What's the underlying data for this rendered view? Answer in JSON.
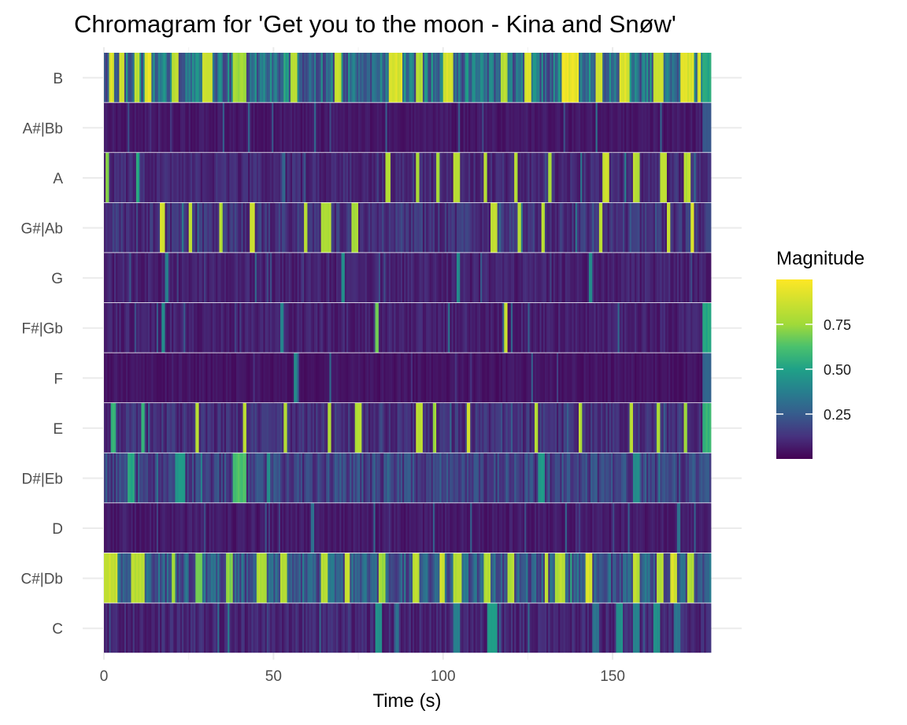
{
  "chart_data": {
    "type": "heatmap",
    "title": "Chromagram for 'Get you to the moon -  Kina and Snøw'",
    "xlabel": "Time (s)",
    "ylabel": "",
    "xlim": [
      0,
      179
    ],
    "x_ticks": [
      0,
      50,
      100,
      150
    ],
    "pitch_classes": [
      "C",
      "C#|Db",
      "D",
      "D#|Eb",
      "E",
      "F",
      "F#|Gb",
      "G",
      "G#|Ab",
      "A",
      "A#|Bb",
      "B"
    ],
    "frame_seconds": 0.5,
    "colorscale": "viridis",
    "color_range": [
      0,
      1
    ],
    "legend": {
      "title": "Magnitude",
      "ticks": [
        0.25,
        0.5,
        0.75
      ],
      "tick_labels": [
        "0.25",
        "0.50",
        "0.75"
      ],
      "position": "right"
    },
    "base_levels": {
      "C": 0.12,
      "C#|Db": 0.3,
      "D": 0.08,
      "D#|Eb": 0.22,
      "E": 0.15,
      "F": 0.06,
      "F#|Gb": 0.1,
      "G": 0.1,
      "G#|Ab": 0.16,
      "A": 0.12,
      "A#|Bb": 0.07,
      "B": 0.4
    },
    "highlight_segments": {
      "B": [
        [
          1.5,
          3,
          0.95
        ],
        [
          4.5,
          6,
          0.9
        ],
        [
          9,
          10.5,
          0.85
        ],
        [
          12,
          14,
          1.0
        ],
        [
          20,
          22,
          0.85
        ],
        [
          29,
          32,
          0.95
        ],
        [
          38,
          42,
          0.8
        ],
        [
          55,
          57,
          0.85
        ],
        [
          68,
          70,
          0.9
        ],
        [
          84,
          88,
          0.95
        ],
        [
          92,
          94,
          0.85
        ],
        [
          100,
          103,
          0.95
        ],
        [
          117,
          119,
          0.85
        ],
        [
          124,
          126,
          0.95
        ],
        [
          135,
          140,
          1.0
        ],
        [
          145,
          147,
          0.9
        ],
        [
          152,
          155,
          0.95
        ],
        [
          162,
          165,
          0.9
        ],
        [
          170,
          174,
          0.95
        ],
        [
          175,
          176,
          0.95
        ],
        [
          176.5,
          179,
          0.55
        ]
      ],
      "A#|Bb": [
        [
          176.5,
          179,
          0.25
        ]
      ],
      "A": [
        [
          0.5,
          1.5,
          0.75
        ],
        [
          9.5,
          10.5,
          0.55
        ],
        [
          83,
          84.5,
          0.85
        ],
        [
          92,
          93,
          0.85
        ],
        [
          98,
          99,
          0.8
        ],
        [
          103,
          105,
          0.85
        ],
        [
          112,
          113,
          0.85
        ],
        [
          121,
          122,
          0.85
        ],
        [
          131,
          132,
          0.8
        ],
        [
          147,
          149,
          0.9
        ],
        [
          156,
          158,
          0.85
        ],
        [
          164,
          166,
          0.9
        ],
        [
          171,
          173,
          0.85
        ]
      ],
      "G#|Ab": [
        [
          16.5,
          18,
          0.95
        ],
        [
          25,
          26,
          0.85
        ],
        [
          34,
          35,
          0.85
        ],
        [
          43,
          44.5,
          0.95
        ],
        [
          59,
          60,
          0.85
        ],
        [
          64,
          67,
          0.85
        ],
        [
          73,
          75,
          0.8
        ],
        [
          114,
          116,
          0.9
        ],
        [
          122,
          123,
          0.85
        ],
        [
          129,
          130,
          0.85
        ],
        [
          146,
          147,
          0.85
        ],
        [
          166,
          167,
          0.9
        ],
        [
          173,
          174,
          0.95
        ]
      ],
      "G": [
        [
          18,
          19,
          0.4
        ],
        [
          70,
          71,
          0.45
        ],
        [
          104,
          105,
          0.45
        ],
        [
          143,
          144,
          0.45
        ]
      ],
      "F#|Gb": [
        [
          17,
          18,
          0.45
        ],
        [
          52,
          53,
          0.4
        ],
        [
          80,
          81,
          0.75
        ],
        [
          118,
          119,
          0.9
        ],
        [
          176.5,
          179,
          0.55
        ]
      ],
      "F": [
        [
          56,
          57,
          0.45
        ],
        [
          176.5,
          179,
          0.3
        ]
      ],
      "E": [
        [
          2,
          3.5,
          0.6
        ],
        [
          11,
          12,
          0.6
        ],
        [
          27,
          28,
          0.85
        ],
        [
          41,
          42,
          0.85
        ],
        [
          53,
          54,
          0.85
        ],
        [
          66,
          67,
          0.8
        ],
        [
          74,
          76,
          0.85
        ],
        [
          92,
          94,
          0.85
        ],
        [
          97,
          98,
          0.8
        ],
        [
          107,
          108,
          0.95
        ],
        [
          127,
          128,
          0.85
        ],
        [
          140,
          141,
          0.85
        ],
        [
          155,
          156,
          0.85
        ],
        [
          163,
          164,
          0.85
        ],
        [
          171,
          172,
          0.8
        ],
        [
          176.5,
          179,
          0.6
        ]
      ],
      "D#|Eb": [
        [
          7,
          9,
          0.55
        ],
        [
          21,
          24,
          0.5
        ],
        [
          38,
          42,
          0.65
        ],
        [
          48,
          49,
          0.45
        ],
        [
          128,
          130,
          0.5
        ],
        [
          156,
          158,
          0.45
        ]
      ],
      "D": [
        [
          61,
          62,
          0.35
        ],
        [
          169,
          170,
          0.35
        ]
      ],
      "C#|Db": [
        [
          0,
          4,
          0.9
        ],
        [
          8,
          12,
          0.85
        ],
        [
          20,
          21,
          0.8
        ],
        [
          27,
          29,
          0.7
        ],
        [
          36,
          38,
          0.75
        ],
        [
          45,
          48,
          0.85
        ],
        [
          52,
          54,
          0.85
        ],
        [
          64,
          66,
          0.85
        ],
        [
          71,
          72.5,
          0.9
        ],
        [
          81,
          83,
          0.8
        ],
        [
          91,
          93,
          0.85
        ],
        [
          99,
          100.5,
          0.95
        ],
        [
          103,
          105.5,
          0.85
        ],
        [
          112,
          114,
          0.85
        ],
        [
          119,
          121,
          0.85
        ],
        [
          130,
          131,
          0.85
        ],
        [
          133,
          136,
          0.85
        ],
        [
          142,
          144,
          0.95
        ],
        [
          156,
          158,
          0.85
        ],
        [
          163,
          165,
          0.85
        ],
        [
          167,
          169,
          0.95
        ],
        [
          172,
          174,
          0.85
        ]
      ],
      "C": [
        [
          80,
          82,
          0.45
        ],
        [
          86,
          87,
          0.35
        ],
        [
          103,
          105,
          0.4
        ],
        [
          113,
          116,
          0.5
        ],
        [
          144,
          146,
          0.35
        ],
        [
          151,
          153,
          0.45
        ],
        [
          156,
          158,
          0.4
        ],
        [
          162,
          164,
          0.45
        ],
        [
          168,
          170,
          0.35
        ]
      ]
    }
  }
}
